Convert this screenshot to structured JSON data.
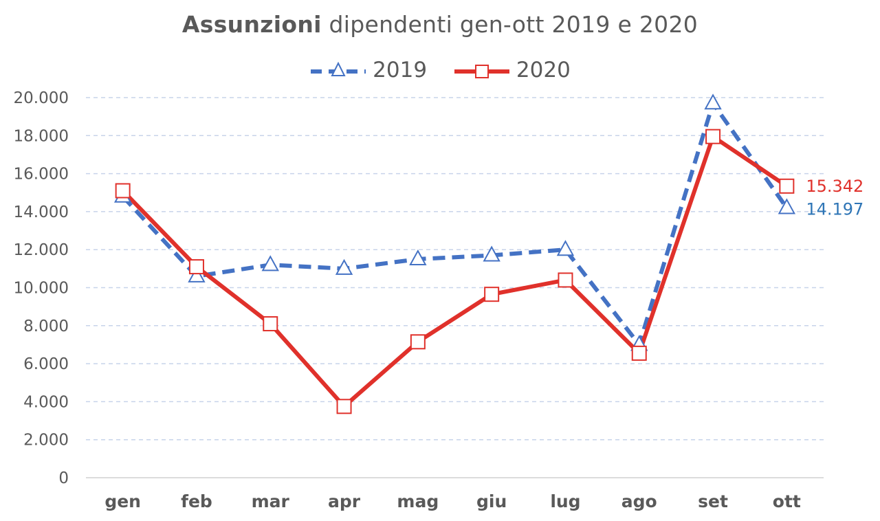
{
  "chart_data": {
    "type": "line",
    "title_bold": "Assunzioni",
    "title_rest": " dipendenti gen-ott 2019 e 2020",
    "categories": [
      "gen",
      "feb",
      "mar",
      "apr",
      "mag",
      "giu",
      "lug",
      "ago",
      "set",
      "ott"
    ],
    "ylim": [
      0,
      20000
    ],
    "yticks": [
      0,
      2000,
      4000,
      6000,
      8000,
      10000,
      12000,
      14000,
      16000,
      18000,
      20000
    ],
    "ytick_labels": [
      "0",
      "2.000",
      "4.000",
      "6.000",
      "8.000",
      "10.000",
      "12.000",
      "14.000",
      "16.000",
      "18.000",
      "20.000"
    ],
    "grid": true,
    "legend_position": "top-center",
    "series": [
      {
        "name": "2019",
        "color": "#4472C4",
        "line_style": "dashed",
        "marker": "triangle",
        "values": [
          14800,
          10600,
          11200,
          11000,
          11500,
          11700,
          12000,
          7000,
          19700,
          14197
        ],
        "end_label": "14.197",
        "end_label_color": "#2E75B6"
      },
      {
        "name": "2020",
        "color": "#E0312B",
        "line_style": "solid",
        "marker": "square",
        "values": [
          15100,
          11100,
          8100,
          3750,
          7150,
          9650,
          10400,
          6550,
          17950,
          15342
        ],
        "end_label": "15.342",
        "end_label_color": "#E0312B"
      }
    ]
  }
}
